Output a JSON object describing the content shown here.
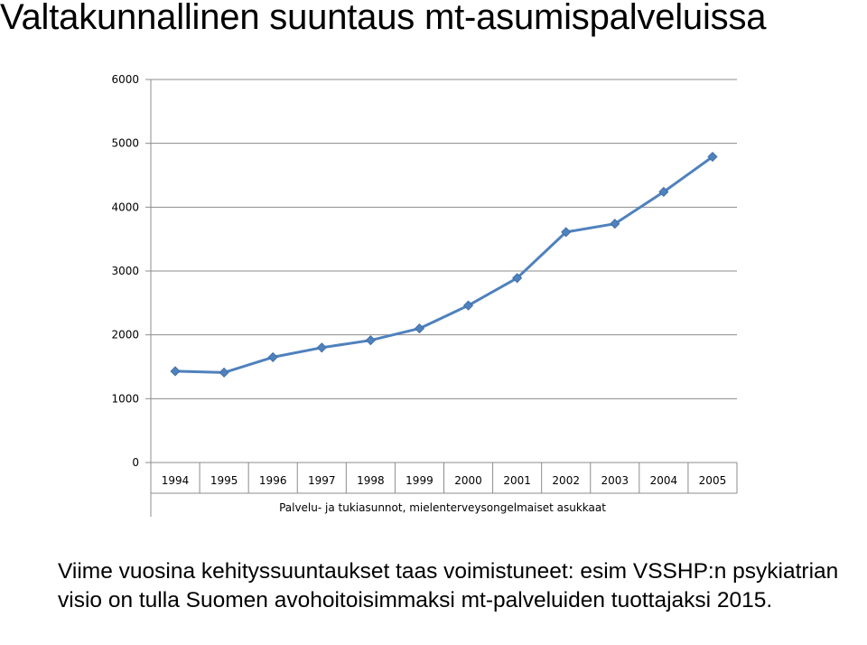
{
  "slide": {
    "title": "Valtakunnallinen suuntaus mt-asumispalveluissa",
    "caption": "Viime vuosina kehityssuuntaukset taas voimistuneet: esim VSSHP:n psykiatrian visio on tulla Suomen avohoitoisimmaksi mt-palveluiden tuottajaksi 2015."
  },
  "chart_data": {
    "type": "line",
    "categories": [
      "1994",
      "1995",
      "1996",
      "1997",
      "1998",
      "1999",
      "2000",
      "2001",
      "2002",
      "2003",
      "2004",
      "2005"
    ],
    "series": [
      {
        "name": "",
        "values": [
          1430,
          1410,
          1650,
          1800,
          1915,
          2100,
          2460,
          2890,
          3610,
          3740,
          4240,
          4790
        ]
      }
    ],
    "title": "",
    "xlabel": "Palvelu- ja tukiasunnot, mielenterveysongelmaiset asukkaat",
    "ylabel": "",
    "ylim": [
      0,
      6000
    ],
    "yticks": [
      "0",
      "1000",
      "2000",
      "3000",
      "4000",
      "5000",
      "6000"
    ],
    "grid": true,
    "legend": "none",
    "colors": {
      "line": "#4F81BD",
      "marker": "#4F81BD",
      "grid": "#8c8c8c"
    }
  }
}
